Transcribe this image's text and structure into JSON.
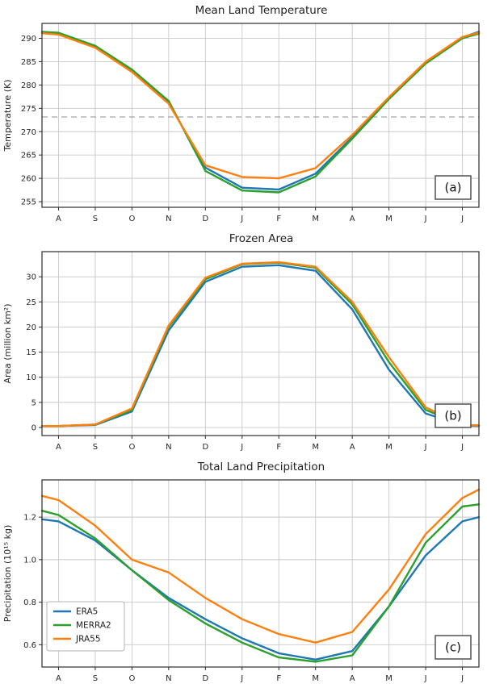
{
  "colors": {
    "era5": "#1f77b4",
    "merra2": "#2ca02c",
    "jra55": "#ff7f0e",
    "grid": "#c8c8c8",
    "axis": "#2b2b2b",
    "reference_line": "#a3a3a3",
    "background": "#ffffff"
  },
  "chart_data": [
    {
      "type": "line",
      "title": "Mean Land Temperature",
      "ylabel": "Temperature (K)",
      "panel_label": "(a)",
      "categories": [
        "A",
        "S",
        "O",
        "N",
        "D",
        "J",
        "F",
        "M",
        "A",
        "M",
        "J",
        "J"
      ],
      "x": [
        -0.45,
        0,
        1,
        2,
        3,
        4,
        5,
        6,
        7,
        8,
        9,
        10,
        11,
        11.45
      ],
      "ylim": [
        253.8,
        293.2
      ],
      "yticks": [
        255,
        260,
        265,
        270,
        275,
        280,
        285,
        290
      ],
      "ytick_labels": [
        "255",
        "260",
        "265",
        "270",
        "275",
        "280",
        "285",
        "290"
      ],
      "grid": true,
      "reference_line": 273.15,
      "show_legend": false,
      "series": [
        {
          "name": "ERA5",
          "color": "#1f77b4",
          "values": [
            291.3,
            291.0,
            288.2,
            283.0,
            276.3,
            262.3,
            258.0,
            257.6,
            261.0,
            268.8,
            277.2,
            284.8,
            290.2,
            291.4
          ]
        },
        {
          "name": "MERRA2",
          "color": "#2ca02c",
          "values": [
            291.4,
            291.2,
            288.4,
            283.3,
            276.6,
            261.6,
            257.4,
            257.0,
            260.4,
            268.5,
            277.0,
            284.6,
            290.0,
            291.0
          ]
        },
        {
          "name": "JRA55",
          "color": "#ff7f0e",
          "values": [
            291.1,
            290.8,
            288.0,
            282.8,
            276.0,
            262.8,
            260.3,
            260.0,
            262.2,
            269.3,
            277.4,
            285.0,
            290.3,
            291.2
          ]
        }
      ]
    },
    {
      "type": "line",
      "title": "Frozen Area",
      "ylabel": "Area (million km²)",
      "panel_label": "(b)",
      "categories": [
        "A",
        "S",
        "O",
        "N",
        "D",
        "J",
        "F",
        "M",
        "A",
        "M",
        "J",
        "J"
      ],
      "x": [
        -0.45,
        0,
        1,
        2,
        3,
        4,
        5,
        6,
        7,
        8,
        9,
        10,
        11,
        11.45
      ],
      "ylim": [
        -1.6,
        35.0
      ],
      "yticks": [
        0,
        5,
        10,
        15,
        20,
        25,
        30
      ],
      "ytick_labels": [
        "0",
        "5",
        "10",
        "15",
        "20",
        "25",
        "30"
      ],
      "grid": true,
      "reference_line": null,
      "show_legend": false,
      "series": [
        {
          "name": "ERA5",
          "color": "#1f77b4",
          "values": [
            0.3,
            0.3,
            0.5,
            3.2,
            19.3,
            29.0,
            32.0,
            32.3,
            31.2,
            23.5,
            11.5,
            2.8,
            0.4,
            0.3
          ]
        },
        {
          "name": "MERRA2",
          "color": "#2ca02c",
          "values": [
            0.3,
            0.3,
            0.6,
            3.5,
            20.0,
            29.5,
            32.5,
            32.8,
            31.8,
            24.5,
            13.0,
            3.5,
            0.5,
            0.4
          ]
        },
        {
          "name": "JRA55",
          "color": "#ff7f0e",
          "values": [
            0.3,
            0.3,
            0.6,
            3.8,
            20.3,
            29.8,
            32.6,
            32.9,
            32.0,
            25.0,
            14.0,
            4.0,
            0.5,
            0.4
          ]
        }
      ]
    },
    {
      "type": "line",
      "title": "Total Land Precipitation",
      "ylabel": "Precipitation (10¹⁵ kg)",
      "panel_label": "(c)",
      "categories": [
        "A",
        "S",
        "O",
        "N",
        "D",
        "J",
        "F",
        "M",
        "A",
        "M",
        "J",
        "J"
      ],
      "x": [
        -0.45,
        0,
        1,
        2,
        3,
        4,
        5,
        6,
        7,
        8,
        9,
        10,
        11,
        11.45
      ],
      "ylim": [
        0.495,
        1.375
      ],
      "yticks": [
        0.6,
        0.8,
        1.0,
        1.2
      ],
      "ytick_labels": [
        "0.6",
        "0.8",
        "1.0",
        "1.2"
      ],
      "grid": true,
      "reference_line": null,
      "show_legend": true,
      "legend_position": "lower left",
      "series": [
        {
          "name": "ERA5",
          "color": "#1f77b4",
          "values": [
            1.19,
            1.18,
            1.09,
            0.95,
            0.82,
            0.72,
            0.63,
            0.56,
            0.53,
            0.57,
            0.78,
            1.02,
            1.18,
            1.2
          ]
        },
        {
          "name": "MERRA2",
          "color": "#2ca02c",
          "values": [
            1.23,
            1.21,
            1.1,
            0.95,
            0.81,
            0.7,
            0.61,
            0.54,
            0.52,
            0.55,
            0.78,
            1.08,
            1.25,
            1.26
          ]
        },
        {
          "name": "JRA55",
          "color": "#ff7f0e",
          "values": [
            1.3,
            1.28,
            1.16,
            1.0,
            0.94,
            0.82,
            0.72,
            0.65,
            0.61,
            0.66,
            0.86,
            1.12,
            1.29,
            1.33
          ]
        }
      ]
    }
  ]
}
